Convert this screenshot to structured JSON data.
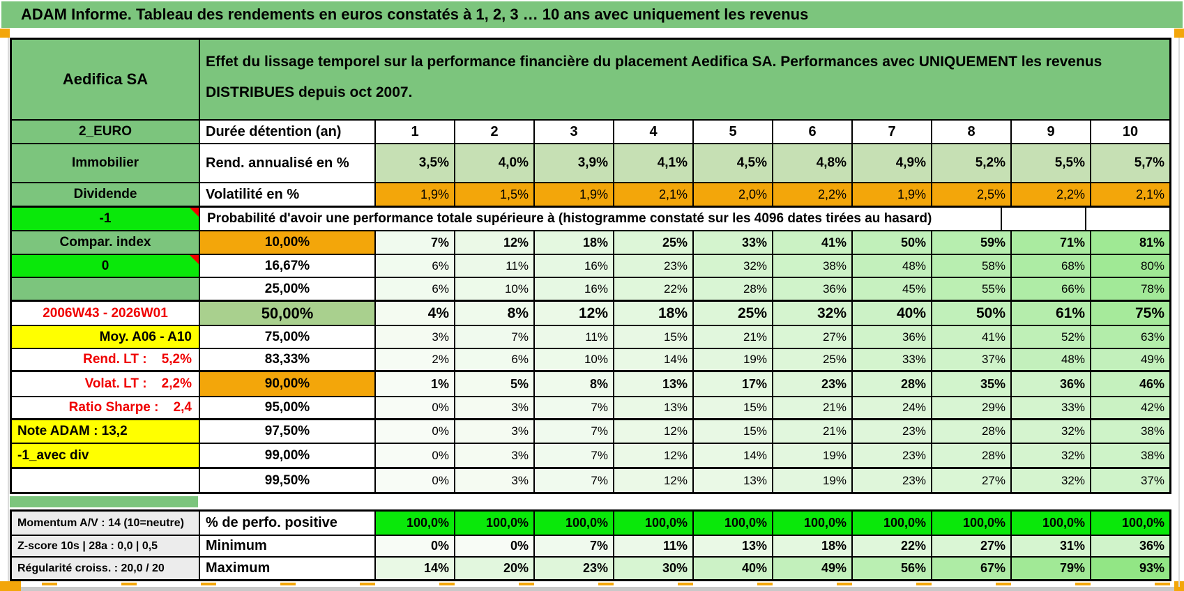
{
  "title_bar": {
    "text": "ADAM Informe. Tableau des rendements en euros constatés à 1, 2, 3 … 10 ans avec uniquement les revenus"
  },
  "header": {
    "security_name": "Aedifica SA",
    "description": "Effet du lissage temporel sur la performance financière du placement Aedifica SA. Performances avec UNIQUEMENT les revenus DISTRIBUES depuis oct 2007."
  },
  "columns": [
    "1",
    "2",
    "3",
    "4",
    "5",
    "6",
    "7",
    "8",
    "9",
    "10"
  ],
  "rows": [
    {
      "type": "years",
      "left": {
        "text": "2_EURO",
        "style": "sage"
      },
      "label": {
        "text": "Durée détention (an)",
        "style": "header"
      },
      "cells": []
    },
    {
      "type": "rend",
      "left": {
        "text": "Immobilier",
        "style": "sage"
      },
      "label": {
        "text": "Rend. annualisé en %",
        "style": "header"
      },
      "cells": [
        "3,5%",
        "4,0%",
        "3,9%",
        "4,1%",
        "4,5%",
        "4,8%",
        "4,9%",
        "5,2%",
        "5,5%",
        "5,7%"
      ]
    },
    {
      "type": "vol",
      "left": {
        "text": "Dividende",
        "style": "sage"
      },
      "label": {
        "text": "Volatilité en %",
        "style": "header"
      },
      "cells": [
        "1,9%",
        "1,5%",
        "1,9%",
        "2,1%",
        "2,0%",
        "2,2%",
        "1,9%",
        "2,5%",
        "2,2%",
        "2,1%"
      ]
    },
    {
      "type": "probhdr",
      "left": {
        "text": "-1",
        "style": "bright",
        "comment": true
      },
      "span_text": "Probabilité d'avoir une performance totale supérieure à (histogramme constaté sur les 4096 dates tirées au hasard)"
    },
    {
      "type": "probbold",
      "left": {
        "text": "Compar. index",
        "style": "sage"
      },
      "label": {
        "text": "10,00%",
        "style": "orange"
      },
      "cells": [
        "7%",
        "12%",
        "18%",
        "25%",
        "33%",
        "41%",
        "50%",
        "59%",
        "71%",
        "81%"
      ]
    },
    {
      "type": "prob",
      "left": {
        "text": "0",
        "style": "bright",
        "comment": true
      },
      "label": {
        "text": "16,67%",
        "style": "plain"
      },
      "cells": [
        "6%",
        "11%",
        "16%",
        "23%",
        "32%",
        "38%",
        "48%",
        "58%",
        "68%",
        "80%"
      ]
    },
    {
      "type": "prob",
      "left": {
        "text": "",
        "style": "sage"
      },
      "label": {
        "text": "25,00%",
        "style": "plain"
      },
      "cells": [
        "6%",
        "10%",
        "16%",
        "22%",
        "28%",
        "36%",
        "45%",
        "55%",
        "66%",
        "78%"
      ]
    },
    {
      "type": "probbig",
      "left": {
        "text": "2006W43 - 2026W01",
        "style": "redc"
      },
      "label": {
        "text": "50,00%",
        "style": "green50"
      },
      "cells": [
        "4%",
        "8%",
        "12%",
        "18%",
        "25%",
        "32%",
        "40%",
        "50%",
        "61%",
        "75%"
      ]
    },
    {
      "type": "prob",
      "left": {
        "text": "Moy. A06 - A10",
        "style": "yr"
      },
      "label": {
        "text": "75,00%",
        "style": "plain"
      },
      "cells": [
        "3%",
        "7%",
        "11%",
        "15%",
        "21%",
        "27%",
        "36%",
        "41%",
        "52%",
        "63%"
      ]
    },
    {
      "type": "prob",
      "left": {
        "text": "Rend. LT :    5,2%",
        "style": "rr"
      },
      "label": {
        "text": "83,33%",
        "style": "plain"
      },
      "cells": [
        "2%",
        "6%",
        "10%",
        "14%",
        "19%",
        "25%",
        "33%",
        "37%",
        "48%",
        "49%"
      ]
    },
    {
      "type": "probbold",
      "left": {
        "text": "Volat. LT :    2,2%",
        "style": "rr"
      },
      "label": {
        "text": "90,00%",
        "style": "orange"
      },
      "cells": [
        "1%",
        "5%",
        "8%",
        "13%",
        "17%",
        "23%",
        "28%",
        "35%",
        "36%",
        "46%"
      ]
    },
    {
      "type": "prob",
      "left": {
        "text": "Ratio Sharpe :    2,4",
        "style": "rr"
      },
      "label": {
        "text": "95,00%",
        "style": "plain"
      },
      "cells": [
        "0%",
        "3%",
        "7%",
        "13%",
        "15%",
        "21%",
        "24%",
        "29%",
        "33%",
        "42%"
      ]
    },
    {
      "type": "prob",
      "left": {
        "text": "Note ADAM : 13,2",
        "style": "yl"
      },
      "label": {
        "text": "97,50%",
        "style": "plain"
      },
      "cells": [
        "0%",
        "3%",
        "7%",
        "12%",
        "15%",
        "21%",
        "23%",
        "28%",
        "32%",
        "38%"
      ]
    },
    {
      "type": "prob",
      "left": {
        "text": "-1_avec div",
        "style": "yl"
      },
      "label": {
        "text": "99,00%",
        "style": "plain"
      },
      "cells": [
        "0%",
        "3%",
        "7%",
        "12%",
        "14%",
        "19%",
        "23%",
        "28%",
        "32%",
        "38%"
      ]
    },
    {
      "type": "prob",
      "left": {
        "text": "",
        "style": "white"
      },
      "label": {
        "text": "99,50%",
        "style": "plain"
      },
      "cells": [
        "0%",
        "3%",
        "7%",
        "12%",
        "13%",
        "19%",
        "23%",
        "27%",
        "32%",
        "37%"
      ]
    }
  ],
  "bottom_rows": [
    {
      "type": "pos",
      "left": {
        "text": "Momentum A/V : 14 (10=neutre)",
        "style": "gray"
      },
      "label": {
        "text": "% de perfo. positive",
        "style": "header"
      },
      "cells": [
        "100,0%",
        "100,0%",
        "100,0%",
        "100,0%",
        "100,0%",
        "100,0%",
        "100,0%",
        "100,0%",
        "100,0%",
        "100,0%"
      ]
    },
    {
      "type": "minmax",
      "left": {
        "text": "Z-score 10s | 28a : 0,0 | 0,5",
        "style": "gray"
      },
      "label": {
        "text": "Minimum",
        "style": "header"
      },
      "cells": [
        "0%",
        "0%",
        "7%",
        "11%",
        "13%",
        "18%",
        "22%",
        "27%",
        "31%",
        "36%"
      ]
    },
    {
      "type": "minmax",
      "left": {
        "text": "Régularité croiss. : 20,0 / 20",
        "style": "gray"
      },
      "label": {
        "text": "Maximum",
        "style": "header"
      },
      "cells": [
        "14%",
        "20%",
        "23%",
        "30%",
        "40%",
        "49%",
        "56%",
        "67%",
        "79%",
        "93%"
      ]
    }
  ],
  "colors": {
    "green": "#7cc57d",
    "bright_green": "#0ae80a",
    "orange": "#f3a60a",
    "light_green": "#c6e0b4",
    "mid_green": "#a9d08e",
    "yellow": "#ffff00",
    "gray_label": "#ececec",
    "red_text": "#ef0000",
    "bottom_strip": "#c9c9c9"
  }
}
